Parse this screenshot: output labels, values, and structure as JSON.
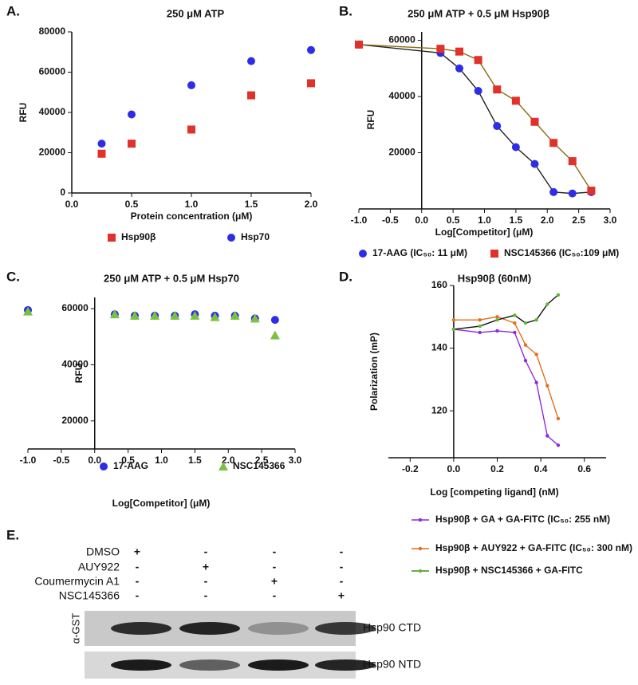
{
  "chart_data": [
    {
      "type": "scatter",
      "panel_label": "A.",
      "title": "250 μM ATP",
      "x_label": "Protein concentration (μM)",
      "y_label": "RFU",
      "xlim": [
        0,
        2
      ],
      "xticks": [
        {
          "value": 0,
          "label": "0.0"
        },
        0.5,
        {
          "value": 1,
          "label": "1.0"
        },
        1.5,
        {
          "value": 2,
          "label": "2.0"
        }
      ],
      "ylim": [
        0,
        80000
      ],
      "yticks": [
        0,
        20000,
        40000,
        60000,
        80000
      ],
      "legend": "below",
      "x": [
        0.25,
        0.5,
        1,
        1.5,
        2
      ],
      "series": [
        {
          "name": "Hsp90β",
          "color": "#e0322b",
          "marker": "square",
          "values": [
            19500,
            24500,
            31500,
            48500,
            54500
          ]
        },
        {
          "name": "Hsp70",
          "color": "#2d2de8",
          "marker": "circle",
          "values": [
            24500,
            39000,
            53500,
            65500,
            71000
          ]
        }
      ]
    },
    {
      "type": "scatter",
      "panel_label": "B.",
      "title": "250 μM ATP + 0.5 μM Hsp90β",
      "x_label": "Log[Competitor] (μM)",
      "y_label": "RFU",
      "xlim": [
        -1,
        3
      ],
      "xticks": [
        {
          "value": -1,
          "label": "-1.0"
        },
        -0.5,
        {
          "value": 0,
          "label": "0.0"
        },
        0.5,
        {
          "value": 1,
          "label": "1.0"
        },
        1.5,
        {
          "value": 2,
          "label": "2.0"
        },
        2.5,
        {
          "value": 3,
          "label": "3.0"
        }
      ],
      "ylim": [
        0,
        63000
      ],
      "yticks": [
        20000,
        40000,
        60000
      ],
      "legend": "below",
      "x": [
        -1,
        0.3,
        0.6,
        0.9,
        1.2,
        1.5,
        1.8,
        2.1,
        2.4,
        2.7
      ],
      "series": [
        {
          "name": "17-AAG (IC₅₀: 11 μM)",
          "color": "#2d2de8",
          "marker": "circle",
          "curve_color": "#222",
          "values": [
            58500,
            55500,
            50000,
            42000,
            29500,
            22000,
            16000,
            6000,
            5500,
            6000
          ]
        },
        {
          "name": "NSC145366 (IC₅₀:109 μM)",
          "color": "#e0322b",
          "marker": "square",
          "curve_color": "#8a6a10",
          "values": [
            58500,
            57000,
            56000,
            53000,
            42500,
            38500,
            31000,
            23500,
            17000,
            6500
          ]
        }
      ]
    },
    {
      "type": "scatter",
      "panel_label": "C.",
      "title": "250 μM ATP + 0.5 μM Hsp70",
      "x_label": "Log[Competitor] (μM)",
      "y_label": "RFU",
      "xlim": [
        -1,
        3
      ],
      "xticks": [
        {
          "value": -1,
          "label": "-1.0"
        },
        -0.5,
        {
          "value": 0,
          "label": "0.0"
        },
        0.5,
        {
          "value": 1,
          "label": "1.0"
        },
        1.5,
        {
          "value": 2,
          "label": "2.0"
        },
        2.5,
        {
          "value": 3,
          "label": "3.0"
        }
      ],
      "ylim": [
        10000,
        64000
      ],
      "yticks": [
        20000,
        40000,
        60000
      ],
      "legend": "inside-bottom",
      "x": [
        -1,
        0.3,
        0.6,
        0.9,
        1.2,
        1.5,
        1.8,
        2.1,
        2.4,
        2.7
      ],
      "series": [
        {
          "name": "17-AAG",
          "color": "#2d2de8",
          "marker": "circle",
          "values": [
            59500,
            58000,
            57500,
            57500,
            57500,
            58000,
            57500,
            57500,
            56500,
            56000
          ]
        },
        {
          "name": "NSC145366",
          "color": "#7ac142",
          "marker": "triangle",
          "values": [
            59000,
            58000,
            57500,
            57500,
            57500,
            57500,
            57000,
            57500,
            56500,
            50500
          ]
        }
      ]
    },
    {
      "type": "scatter",
      "panel_label": "D.",
      "title": "Hsp90β (60nM)",
      "x_label": "Log [competing ligand] (nM)",
      "y_label": "Polarization (mP)",
      "xlim": [
        -0.3,
        0.7
      ],
      "xticks": [
        -0.2,
        {
          "value": 0,
          "label": "0.0"
        },
        0.2,
        0.4,
        0.6
      ],
      "ylim": [
        105,
        160
      ],
      "yticks": [
        120,
        140,
        160
      ],
      "legend": "below-rows",
      "x": [
        0,
        0.12,
        0.2,
        0.28,
        0.33,
        0.38,
        0.43,
        0.48
      ],
      "series": [
        {
          "name": "Hsp90β + GA + GA-FITC (IC₅₀: 255 nM)",
          "color": "#8e2bd8",
          "marker": "dot",
          "curve_color": "#8e2bd8",
          "values": [
            146,
            145,
            145.5,
            145,
            136,
            129,
            112,
            109
          ]
        },
        {
          "name": "Hsp90β + AUY922 + GA-FITC (IC₅₀: 300 nM)",
          "color": "#e0701e",
          "marker": "dot",
          "curve_color": "#e0701e",
          "values": [
            149,
            149,
            150,
            148,
            141,
            138,
            128,
            117.5
          ]
        },
        {
          "name": "Hsp90β + NSC145366 + GA-FITC",
          "color": "#5cb82e",
          "marker": "dot",
          "curve_color": "#111",
          "values": [
            146,
            147,
            149,
            150.5,
            148,
            149,
            154,
            157
          ]
        }
      ]
    }
  ],
  "panel_e": {
    "label": "E.",
    "treatments": [
      "DMSO",
      "AUY922",
      "Coumermycin A1",
      "NSC145366"
    ],
    "signs": [
      [
        "+",
        "-",
        "-",
        "-"
      ],
      [
        "-",
        "+",
        "-",
        "-"
      ],
      [
        "-",
        "-",
        "+",
        "-"
      ],
      [
        "-",
        "-",
        "-",
        "+"
      ]
    ],
    "antibody": "α-GST",
    "blots": [
      "Hsp90 CTD",
      "Hsp90 NTD"
    ]
  }
}
